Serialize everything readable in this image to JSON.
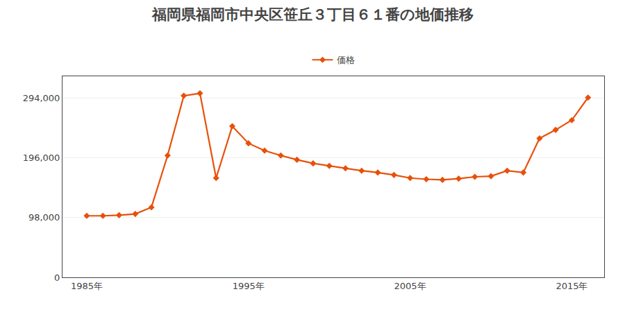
{
  "chart_data": {
    "type": "line",
    "title": "福岡県福岡市中央区笹丘３丁目６１番の地価推移",
    "x": [
      1985,
      1986,
      1987,
      1988,
      1989,
      1990,
      1991,
      1992,
      1993,
      1994,
      1995,
      1996,
      1997,
      1998,
      1999,
      2000,
      2001,
      2002,
      2003,
      2004,
      2005,
      2006,
      2007,
      2008,
      2009,
      2010,
      2011,
      2012,
      2013,
      2014,
      2015,
      2016
    ],
    "series": [
      {
        "name": "価格",
        "color": "#E8500A",
        "marker": "diamond",
        "values": [
          101000,
          101000,
          102000,
          104000,
          115000,
          200000,
          298000,
          302000,
          163000,
          248000,
          220000,
          208000,
          200000,
          193000,
          187000,
          183000,
          179000,
          175000,
          172000,
          168000,
          163000,
          161000,
          160000,
          162000,
          165000,
          166000,
          175000,
          172000,
          228000,
          242000,
          258000,
          295000
        ]
      }
    ],
    "xlim": [
      1983.5,
      2017
    ],
    "xticks": [
      {
        "value": 1985,
        "label": "1985年"
      },
      {
        "value": 1995,
        "label": "1995年"
      },
      {
        "value": 2005,
        "label": "2005年"
      },
      {
        "value": 2015,
        "label": "2015年"
      }
    ],
    "ylim": [
      0,
      330000
    ],
    "yticks": [
      0,
      {
        "value": 98000,
        "label": "98,000"
      },
      {
        "value": 196000,
        "label": "196,000"
      },
      {
        "value": 294000,
        "label": "294,000"
      }
    ],
    "grid": "y",
    "legend": "top"
  }
}
